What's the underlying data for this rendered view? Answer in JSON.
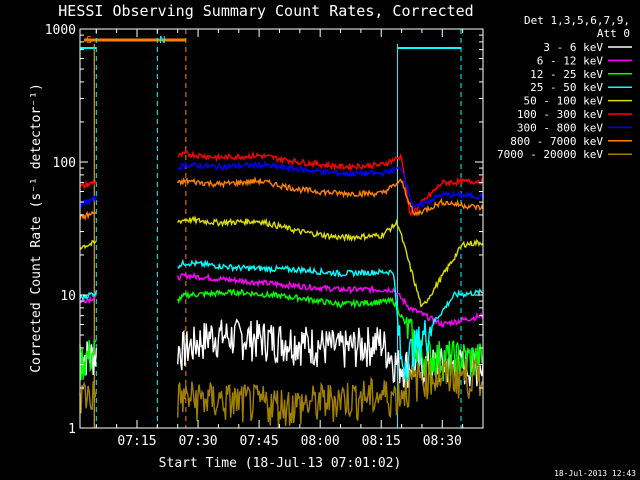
{
  "chart_data": {
    "type": "line",
    "title": "HESSI Observing Summary Count Rates, Corrected",
    "xlabel": "Start Time (18-Jul-13 07:01:02)",
    "ylabel": "Corrected Count Rate (s⁻¹ detector⁻¹)",
    "yscale": "log",
    "ylim": [
      1,
      1000
    ],
    "xlim": [
      "07:01",
      "08:40"
    ],
    "xticks": [
      "07:15",
      "07:30",
      "07:45",
      "08:00",
      "08:15",
      "08:30"
    ],
    "yticks": [
      "1",
      "10",
      "100",
      "1000"
    ],
    "legend_title": [
      "Det 1,3,5,6,7,9,",
      "Att 0"
    ],
    "legend_position": "right",
    "data_gap": [
      "07:05",
      "07:25"
    ],
    "series": [
      {
        "name": "3 - 6 keV",
        "color": "#ffffff",
        "data": [
          [
            "07:01",
            3.5
          ],
          [
            "07:27",
            4.0
          ],
          [
            "07:33",
            5.0
          ],
          [
            "07:45",
            4.8
          ],
          [
            "07:55",
            4.5
          ],
          [
            "08:05",
            4.0
          ],
          [
            "08:15",
            4.5
          ],
          [
            "08:19",
            3.0
          ],
          [
            "08:40",
            3.0
          ]
        ]
      },
      {
        "name": "6 - 12 keV",
        "color": "#ff00ff",
        "data": [
          [
            "07:01",
            9.0
          ],
          [
            "07:27",
            14.0
          ],
          [
            "07:38",
            13.0
          ],
          [
            "07:50",
            12.0
          ],
          [
            "08:05",
            11.0
          ],
          [
            "08:18",
            11.0
          ],
          [
            "08:22",
            8.0
          ],
          [
            "08:30",
            6.0
          ],
          [
            "08:40",
            7.0
          ]
        ]
      },
      {
        "name": "12 - 25 keV",
        "color": "#00ff00",
        "data": [
          [
            "07:01",
            3.2
          ],
          [
            "07:27",
            10.0
          ],
          [
            "07:40",
            10.5
          ],
          [
            "07:55",
            9.5
          ],
          [
            "08:05",
            8.5
          ],
          [
            "08:18",
            9.0
          ],
          [
            "08:25",
            3.5
          ],
          [
            "08:40",
            3.3
          ]
        ]
      },
      {
        "name": "25 - 50 keV",
        "color": "#00ffff",
        "data": [
          [
            "07:01",
            9.5
          ],
          [
            "07:27",
            17.5
          ],
          [
            "07:40",
            16.0
          ],
          [
            "07:55",
            15.5
          ],
          [
            "08:05",
            14.5
          ],
          [
            "08:18",
            15.0
          ],
          [
            "08:20",
            3.0
          ],
          [
            "08:33",
            10.0
          ],
          [
            "08:40",
            10.5
          ]
        ]
      },
      {
        "name": "50 - 100 keV",
        "color": "#dddd00",
        "data": [
          [
            "07:01",
            23.0
          ],
          [
            "07:27",
            37.0
          ],
          [
            "07:35",
            35.0
          ],
          [
            "07:45",
            36.0
          ],
          [
            "07:55",
            30.0
          ],
          [
            "08:05",
            27.0
          ],
          [
            "08:15",
            28.0
          ],
          [
            "08:19",
            35.0
          ],
          [
            "08:25",
            8.0
          ],
          [
            "08:35",
            24.0
          ],
          [
            "08:40",
            25.0
          ]
        ]
      },
      {
        "name": "100 - 300 keV",
        "color": "#ff0000",
        "data": [
          [
            "07:01",
            65.0
          ],
          [
            "07:27",
            115.0
          ],
          [
            "07:35",
            108.0
          ],
          [
            "07:45",
            112.0
          ],
          [
            "07:55",
            100.0
          ],
          [
            "08:05",
            92.0
          ],
          [
            "08:15",
            95.0
          ],
          [
            "08:20",
            110.0
          ],
          [
            "08:22",
            40.0
          ],
          [
            "08:30",
            70.0
          ],
          [
            "08:40",
            72.0
          ]
        ]
      },
      {
        "name": "300 - 800 keV",
        "color": "#0000ff",
        "data": [
          [
            "07:01",
            48.0
          ],
          [
            "07:27",
            95.0
          ],
          [
            "07:35",
            92.0
          ],
          [
            "07:45",
            95.0
          ],
          [
            "07:55",
            88.0
          ],
          [
            "08:05",
            82.0
          ],
          [
            "08:15",
            82.0
          ],
          [
            "08:20",
            90.0
          ],
          [
            "08:23",
            45.0
          ],
          [
            "08:30",
            57.0
          ],
          [
            "08:40",
            55.0
          ]
        ]
      },
      {
        "name": "800 - 7000 keV",
        "color": "#ff8000",
        "data": [
          [
            "07:01",
            38.0
          ],
          [
            "07:27",
            72.0
          ],
          [
            "07:35",
            68.0
          ],
          [
            "07:45",
            72.0
          ],
          [
            "07:55",
            62.0
          ],
          [
            "08:05",
            58.0
          ],
          [
            "08:15",
            58.0
          ],
          [
            "08:20",
            72.0
          ],
          [
            "08:23",
            40.0
          ],
          [
            "08:30",
            50.0
          ],
          [
            "08:40",
            45.0
          ]
        ]
      },
      {
        "name": "7000 - 20000 keV",
        "color": "#a08000",
        "data": [
          [
            "07:01",
            1.8
          ],
          [
            "07:27",
            1.7
          ],
          [
            "07:40",
            1.6
          ],
          [
            "07:55",
            1.5
          ],
          [
            "08:05",
            1.7
          ],
          [
            "08:19",
            1.8
          ],
          [
            "08:25",
            2.5
          ],
          [
            "08:40",
            2.5
          ]
        ]
      }
    ],
    "annotations": [
      {
        "label": "S",
        "time": "07:02",
        "color": "#ff8000",
        "kind": "SAA"
      },
      {
        "label": "N",
        "time": "07:20",
        "color": "#00ffff",
        "kind": "Night"
      }
    ],
    "timestamp": "18-Jul-2013 12:43"
  }
}
